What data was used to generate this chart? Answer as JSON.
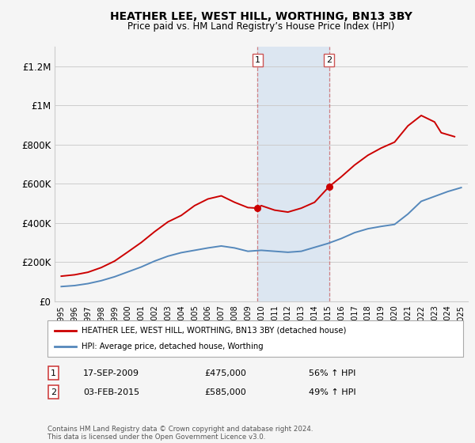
{
  "title": "HEATHER LEE, WEST HILL, WORTHING, BN13 3BY",
  "subtitle": "Price paid vs. HM Land Registry’s House Price Index (HPI)",
  "legend_label_red": "HEATHER LEE, WEST HILL, WORTHING, BN13 3BY (detached house)",
  "legend_label_blue": "HPI: Average price, detached house, Worthing",
  "ann1": {
    "label": "1",
    "date_x": 2009.72,
    "price": 475000,
    "text_date": "17-SEP-2009",
    "text_price": "£475,000",
    "text_hpi": "56% ↑ HPI"
  },
  "ann2": {
    "label": "2",
    "date_x": 2015.09,
    "price": 585000,
    "text_date": "03-FEB-2015",
    "text_price": "£585,000",
    "text_hpi": "49% ↑ HPI"
  },
  "footer": "Contains HM Land Registry data © Crown copyright and database right 2024.\nThis data is licensed under the Open Government Licence v3.0.",
  "red_color": "#cc0000",
  "blue_color": "#5588bb",
  "shaded_color": "#dce6f1",
  "background_color": "#f5f5f5",
  "grid_color": "#cccccc",
  "yticks": [
    0,
    200000,
    400000,
    600000,
    800000,
    1000000,
    1200000
  ],
  "ylabels": [
    "£0",
    "£200K",
    "£400K",
    "£600K",
    "£800K",
    "£1M",
    "£1.2M"
  ],
  "ylim": [
    0,
    1300000
  ],
  "xlim": [
    1994.5,
    2025.5
  ],
  "xtick_years": [
    1995,
    1996,
    1997,
    1998,
    1999,
    2000,
    2001,
    2002,
    2003,
    2004,
    2005,
    2006,
    2007,
    2008,
    2009,
    2010,
    2011,
    2012,
    2013,
    2014,
    2015,
    2016,
    2017,
    2018,
    2019,
    2020,
    2021,
    2022,
    2023,
    2024,
    2025
  ],
  "years_blue": [
    1995,
    1996,
    1997,
    1998,
    1999,
    2000,
    2001,
    2002,
    2003,
    2004,
    2005,
    2006,
    2007,
    2008,
    2009,
    2010,
    2011,
    2012,
    2013,
    2014,
    2015,
    2016,
    2017,
    2018,
    2019,
    2020,
    2021,
    2022,
    2023,
    2024,
    2025
  ],
  "values_blue": [
    75000,
    80000,
    90000,
    105000,
    125000,
    150000,
    175000,
    205000,
    230000,
    248000,
    260000,
    272000,
    282000,
    272000,
    255000,
    260000,
    255000,
    250000,
    255000,
    275000,
    295000,
    320000,
    350000,
    370000,
    382000,
    392000,
    445000,
    510000,
    535000,
    560000,
    580000
  ],
  "years_red": [
    1995,
    1996,
    1997,
    1998,
    1999,
    2000,
    2001,
    2002,
    2003,
    2004,
    2005,
    2006,
    2007,
    2008,
    2009,
    2009.72,
    2010,
    2011,
    2012,
    2013,
    2014,
    2015.09,
    2016,
    2017,
    2018,
    2019,
    2020,
    2021,
    2022,
    2023,
    2023.5,
    2024,
    2024.5
  ],
  "values_red": [
    128000,
    135000,
    148000,
    172000,
    205000,
    252000,
    300000,
    355000,
    405000,
    438000,
    488000,
    522000,
    538000,
    505000,
    478000,
    475000,
    488000,
    465000,
    455000,
    475000,
    505000,
    585000,
    635000,
    695000,
    745000,
    782000,
    812000,
    895000,
    948000,
    915000,
    860000,
    850000,
    840000
  ]
}
